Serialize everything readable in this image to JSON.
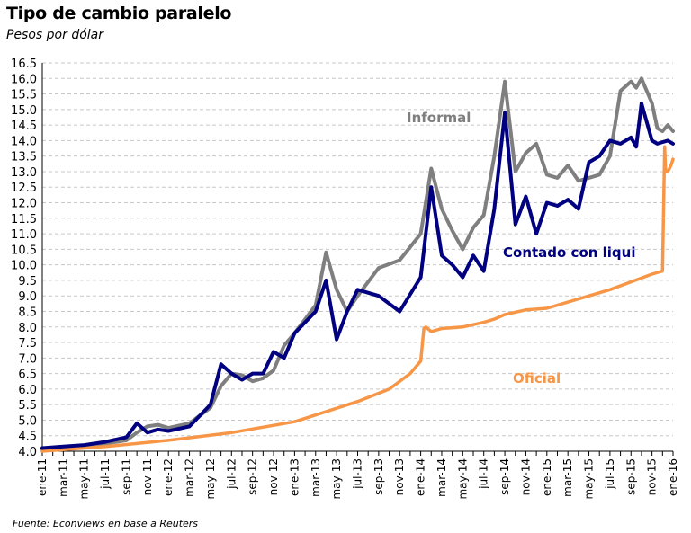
{
  "title": "Tipo de cambio paralelo",
  "subtitle": "Pesos por dólar",
  "source": "Fuente: Econviews en base a Reuters",
  "chart_data": {
    "type": "line",
    "ylim": [
      4.0,
      16.5
    ],
    "yticks": [
      "4.0",
      "4.5",
      "5.0",
      "5.5",
      "6.0",
      "6.5",
      "7.0",
      "7.5",
      "8.0",
      "8.5",
      "9.0",
      "9.5",
      "10.0",
      "10.5",
      "11.0",
      "11.5",
      "12.0",
      "12.5",
      "13.0",
      "13.5",
      "14.0",
      "14.5",
      "15.0",
      "15.5",
      "16.0",
      "16.5"
    ],
    "xticks": [
      "ene-11",
      "mar-11",
      "may-11",
      "jul-11",
      "sep-11",
      "nov-11",
      "ene-12",
      "mar-12",
      "may-12",
      "jul-12",
      "sep-12",
      "nov-12",
      "ene-13",
      "mar-13",
      "may-13",
      "jul-13",
      "sep-13",
      "nov-13",
      "ene-14",
      "mar-14",
      "may-14",
      "jul-14",
      "sep-14",
      "nov-14",
      "ene-15",
      "mar-15",
      "may-15",
      "jul-15",
      "sep-15",
      "nov-15",
      "ene-16"
    ],
    "x_months": [
      0,
      1,
      2,
      3,
      4,
      5,
      6,
      7,
      8,
      9,
      10,
      11,
      12,
      13,
      14,
      15,
      16,
      17,
      18,
      19,
      20,
      21,
      22,
      23,
      24,
      25,
      26,
      27,
      28,
      29,
      30,
      31,
      32,
      33,
      34,
      35,
      36,
      37,
      38,
      39,
      40,
      41,
      42,
      43,
      44,
      45,
      46,
      47,
      48,
      49,
      50,
      51,
      52,
      53,
      54,
      55,
      56,
      57,
      58,
      59,
      60
    ],
    "grid": "horizontal",
    "series": [
      {
        "name": "Informal",
        "color": "#7f7f7f",
        "x": [
          0,
          2,
          4,
          6,
          8,
          9,
          10,
          11,
          12,
          14,
          16,
          17,
          18,
          19,
          20,
          21,
          22,
          23,
          24,
          26,
          27,
          28,
          29,
          30,
          32,
          34,
          36,
          37,
          38,
          39,
          40,
          41,
          42,
          43,
          44,
          45,
          46,
          47,
          48,
          49,
          50,
          51,
          52,
          53,
          54,
          55,
          56,
          56.5,
          57,
          58,
          58.5,
          59,
          59.5,
          60
        ],
        "values": [
          4.05,
          4.12,
          4.18,
          4.25,
          4.35,
          4.6,
          4.8,
          4.85,
          4.75,
          4.9,
          5.4,
          6.1,
          6.5,
          6.45,
          6.25,
          6.35,
          6.6,
          7.4,
          7.8,
          8.7,
          10.4,
          9.2,
          8.5,
          9.0,
          9.9,
          10.15,
          11.0,
          13.1,
          11.8,
          11.1,
          10.5,
          11.2,
          11.6,
          13.5,
          15.9,
          13.0,
          13.6,
          13.9,
          12.9,
          12.8,
          13.2,
          12.7,
          12.8,
          12.9,
          13.5,
          15.6,
          15.9,
          15.7,
          16.0,
          15.2,
          14.4,
          14.3,
          14.5,
          14.3
        ]
      },
      {
        "name": "Contado con liqui",
        "color": "#000080",
        "x": [
          0,
          2,
          4,
          6,
          8,
          9,
          10,
          11,
          12,
          14,
          16,
          17,
          18,
          19,
          20,
          21,
          22,
          23,
          24,
          26,
          27,
          28,
          29,
          30,
          32,
          34,
          36,
          37,
          38,
          39,
          40,
          41,
          42,
          43,
          44,
          45,
          46,
          47,
          48,
          49,
          50,
          51,
          52,
          53,
          54,
          55,
          56,
          56.5,
          57,
          58,
          58.5,
          59,
          59.5,
          60
        ],
        "values": [
          4.1,
          4.15,
          4.2,
          4.3,
          4.45,
          4.9,
          4.6,
          4.7,
          4.65,
          4.8,
          5.5,
          6.8,
          6.5,
          6.3,
          6.5,
          6.5,
          7.2,
          7.0,
          7.8,
          8.5,
          9.5,
          7.6,
          8.5,
          9.2,
          9.0,
          8.5,
          9.6,
          12.5,
          10.3,
          10.0,
          9.6,
          10.3,
          9.8,
          11.8,
          14.9,
          11.3,
          12.2,
          11.0,
          12.0,
          11.9,
          12.1,
          11.8,
          13.3,
          13.5,
          14.0,
          13.9,
          14.1,
          13.8,
          15.2,
          14.0,
          13.9,
          13.95,
          14.0,
          13.9
        ]
      },
      {
        "name": "Oficial",
        "color": "#f79646",
        "x": [
          0,
          6,
          12,
          18,
          24,
          30,
          33,
          35,
          36,
          36.3,
          36.5,
          37,
          38,
          40,
          42,
          43,
          44,
          46,
          48,
          50,
          52,
          54,
          56,
          58,
          59,
          59.2,
          59.3,
          59.5,
          59.8,
          60
        ],
        "values": [
          4.0,
          4.15,
          4.35,
          4.6,
          4.95,
          5.6,
          6.0,
          6.5,
          6.9,
          7.95,
          8.0,
          7.85,
          7.95,
          8.0,
          8.15,
          8.25,
          8.4,
          8.55,
          8.6,
          8.8,
          9.0,
          9.2,
          9.45,
          9.7,
          9.8,
          13.8,
          13.0,
          13.0,
          13.2,
          13.4
        ]
      }
    ],
    "labels": [
      {
        "text": "Informal",
        "series": 0
      },
      {
        "text": "Contado con liqui",
        "series": 1
      },
      {
        "text": "Oficial",
        "series": 2
      }
    ]
  }
}
